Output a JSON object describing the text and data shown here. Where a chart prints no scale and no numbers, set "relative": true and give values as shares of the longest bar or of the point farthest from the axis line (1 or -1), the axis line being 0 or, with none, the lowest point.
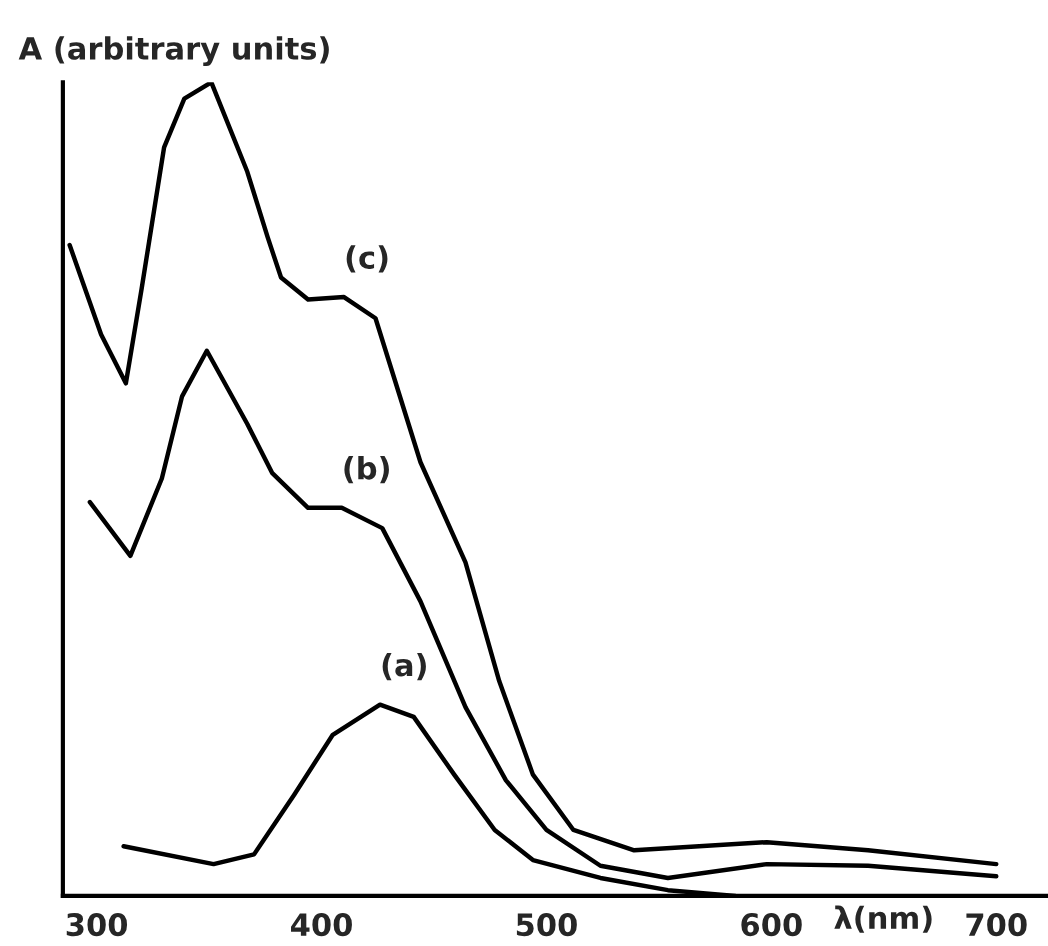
{
  "chart_data": {
    "type": "line",
    "relative": true,
    "xlabel": "λ(nm)",
    "ylabel": "A (arbitrary units)",
    "xlim": [
      285,
      723
    ],
    "xticks": [
      300,
      400,
      500,
      600,
      700
    ],
    "grid": false,
    "legend": false,
    "marker": "none",
    "line_style": "solid",
    "series": [
      {
        "color": "#000000",
        "x": [
          312,
          352,
          370,
          388,
          405,
          426,
          441,
          459,
          477,
          494,
          524,
          554,
          584
        ],
        "values": [
          0.061,
          0.039,
          0.051,
          0.125,
          0.198,
          0.235,
          0.22,
          0.149,
          0.081,
          0.044,
          0.022,
          0.007,
          0.0
        ]
      },
      {
        "color": "#000000",
        "x": [
          297,
          315,
          329,
          338,
          349,
          367,
          378,
          394,
          409,
          427,
          444,
          464,
          482,
          500,
          524,
          554,
          598,
          643,
          700
        ],
        "values": [
          0.484,
          0.418,
          0.513,
          0.614,
          0.67,
          0.58,
          0.52,
          0.477,
          0.477,
          0.452,
          0.362,
          0.232,
          0.142,
          0.081,
          0.037,
          0.022,
          0.039,
          0.037,
          0.024
        ]
      },
      {
        "color": "#000000",
        "x": [
          288,
          302,
          313,
          320,
          330,
          339,
          351,
          367,
          376,
          382,
          394,
          410,
          424,
          444,
          464,
          479,
          494,
          512,
          539,
          598,
          643,
          700
        ],
        "values": [
          0.8,
          0.69,
          0.63,
          0.746,
          0.92,
          0.98,
          1.0,
          0.89,
          0.81,
          0.76,
          0.733,
          0.736,
          0.71,
          0.533,
          0.41,
          0.264,
          0.149,
          0.081,
          0.056,
          0.066,
          0.056,
          0.039
        ]
      }
    ],
    "annotations": [
      {
        "text": "(a)",
        "x": 426,
        "y": 0.235
      },
      {
        "text": "(b)",
        "x": 409,
        "y": 0.477
      },
      {
        "text": "(c)",
        "x": 410,
        "y": 0.736
      }
    ]
  }
}
